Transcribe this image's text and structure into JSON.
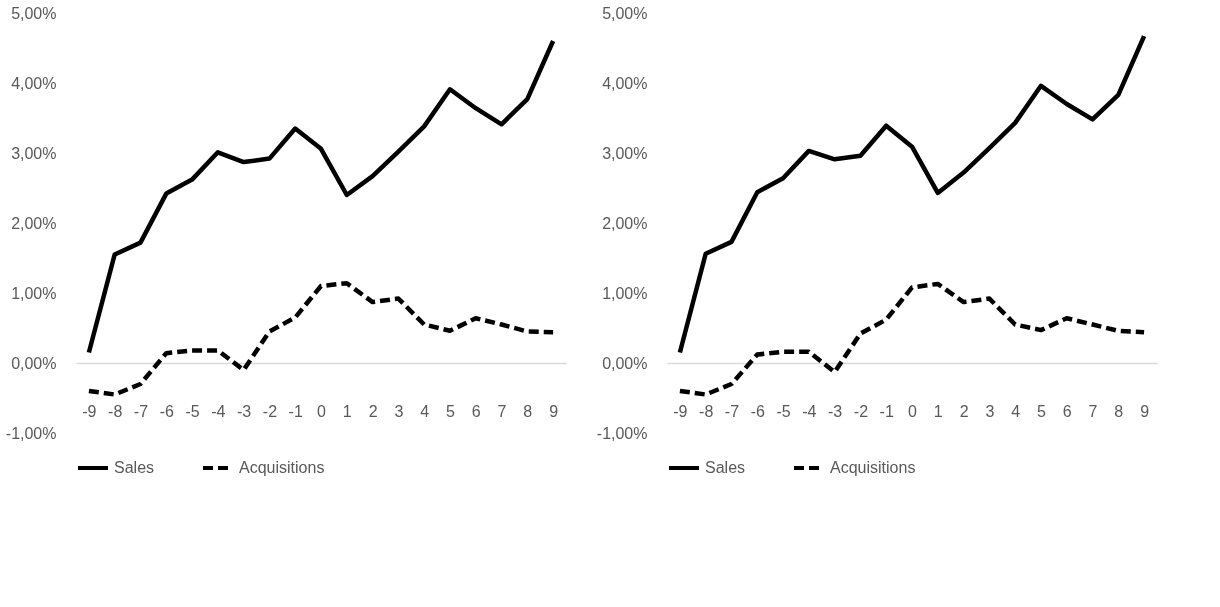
{
  "chart_data": [
    {
      "type": "line",
      "categories": [
        "-9",
        "-8",
        "-7",
        "-6",
        "-5",
        "-4",
        "-3",
        "-2",
        "-1",
        "0",
        "1",
        "2",
        "3",
        "4",
        "5",
        "6",
        "7",
        "8",
        "9"
      ],
      "ylim": [
        -1,
        5
      ],
      "yticks": [
        {
          "value": -1,
          "label": "-1,00%"
        },
        {
          "value": 0,
          "label": "0,00%"
        },
        {
          "value": 1,
          "label": "1,00%"
        },
        {
          "value": 2,
          "label": "2,00%"
        },
        {
          "value": 3,
          "label": "3,00%"
        },
        {
          "value": 4,
          "label": "4,00%"
        },
        {
          "value": 5,
          "label": "5,00%"
        }
      ],
      "grid": false,
      "legend": "bottom",
      "series": [
        {
          "name": "Sales",
          "color": "#000000",
          "line_style": "solid",
          "values": [
            0.15,
            1.55,
            1.72,
            2.42,
            2.62,
            3.01,
            2.87,
            2.92,
            3.35,
            3.06,
            2.4,
            2.67,
            3.02,
            3.38,
            3.91,
            3.64,
            3.41,
            3.77,
            4.6
          ]
        },
        {
          "name": "Acquisitions",
          "color": "#000000",
          "line_style": "dashed",
          "values": [
            -0.4,
            -0.45,
            -0.3,
            0.14,
            0.18,
            0.18,
            -0.1,
            0.45,
            0.65,
            1.1,
            1.14,
            0.87,
            0.92,
            0.55,
            0.46,
            0.64,
            0.55,
            0.45,
            0.44
          ]
        }
      ]
    },
    {
      "type": "line",
      "categories": [
        "-9",
        "-8",
        "-7",
        "-6",
        "-5",
        "-4",
        "-3",
        "-2",
        "-1",
        "0",
        "1",
        "2",
        "3",
        "4",
        "5",
        "6",
        "7",
        "8",
        "9"
      ],
      "ylim": [
        -1,
        5
      ],
      "yticks": [
        {
          "value": -1,
          "label": "-1,00%"
        },
        {
          "value": 0,
          "label": "0,00%"
        },
        {
          "value": 1,
          "label": "1,00%"
        },
        {
          "value": 2,
          "label": "2,00%"
        },
        {
          "value": 3,
          "label": "3,00%"
        },
        {
          "value": 4,
          "label": "4,00%"
        },
        {
          "value": 5,
          "label": "5,00%"
        }
      ],
      "grid": false,
      "legend": "bottom",
      "series": [
        {
          "name": "Sales",
          "color": "#000000",
          "line_style": "solid",
          "values": [
            0.15,
            1.56,
            1.73,
            2.44,
            2.64,
            3.03,
            2.91,
            2.96,
            3.39,
            3.09,
            2.43,
            2.72,
            3.07,
            3.43,
            3.96,
            3.7,
            3.48,
            3.83,
            4.67
          ]
        },
        {
          "name": "Acquisitions",
          "color": "#000000",
          "line_style": "dashed",
          "values": [
            -0.4,
            -0.45,
            -0.3,
            0.12,
            0.16,
            0.16,
            -0.13,
            0.42,
            0.62,
            1.08,
            1.13,
            0.87,
            0.92,
            0.55,
            0.47,
            0.64,
            0.55,
            0.46,
            0.44
          ]
        }
      ]
    }
  ]
}
